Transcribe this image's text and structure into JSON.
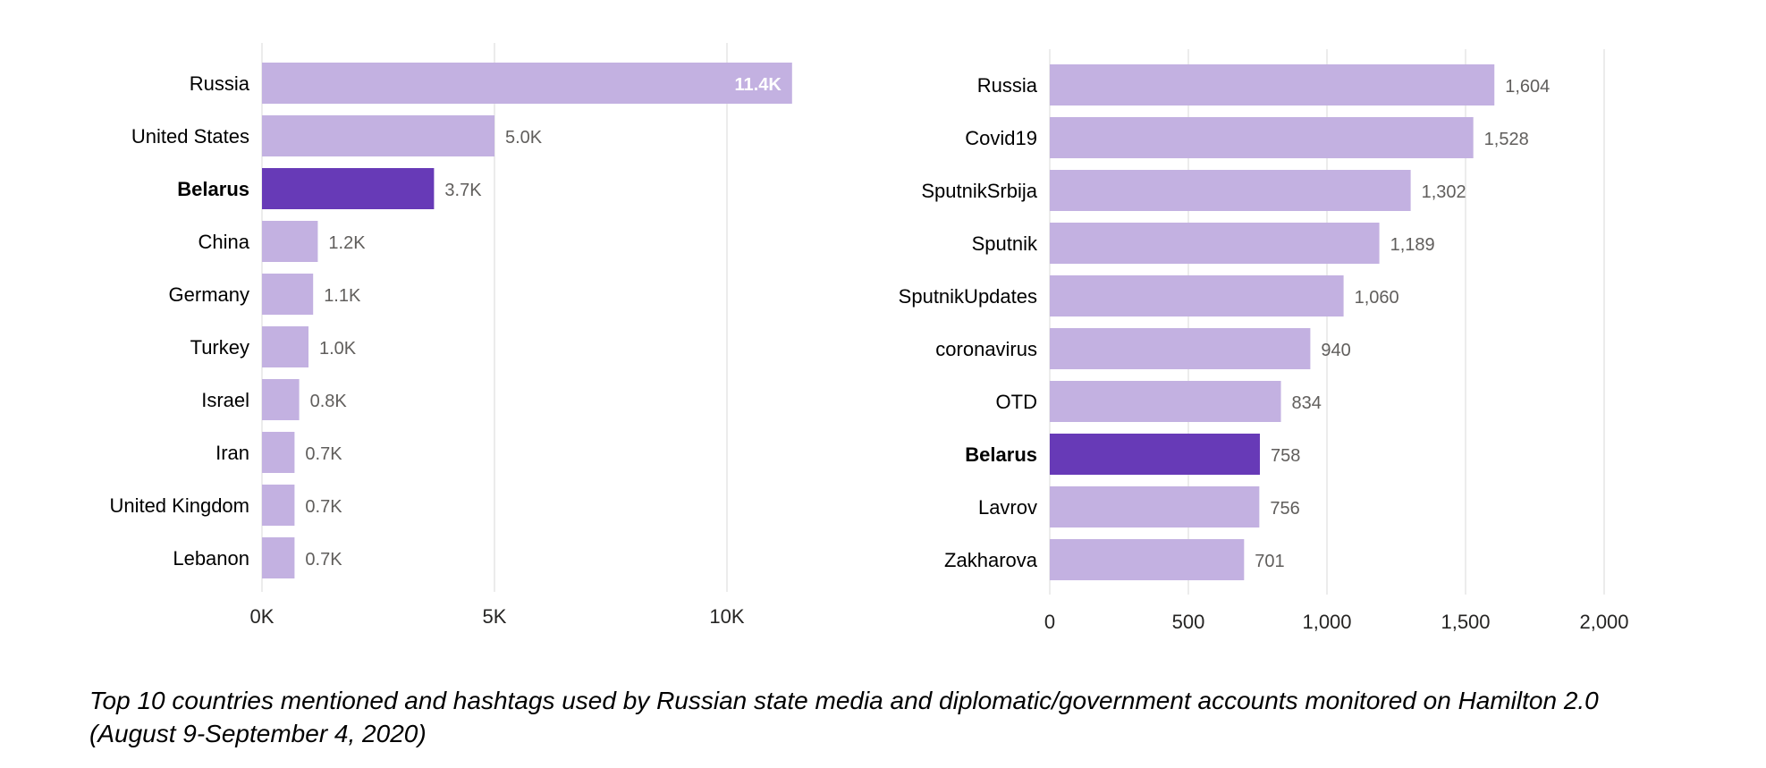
{
  "chart_data": [
    {
      "type": "bar",
      "orientation": "horizontal",
      "categories": [
        "Russia",
        "United States",
        "Belarus",
        "China",
        "Germany",
        "Turkey",
        "Israel",
        "Iran",
        "United Kingdom",
        "Lebanon"
      ],
      "values": [
        11400,
        5000,
        3700,
        1200,
        1100,
        1000,
        800,
        700,
        700,
        700
      ],
      "data_labels": [
        "11.4K",
        "5.0K",
        "3.7K",
        "1.2K",
        "1.1K",
        "1.0K",
        "0.8K",
        "0.7K",
        "0.7K",
        "0.7K"
      ],
      "highlight": "Belarus",
      "xlim": [
        0,
        12500
      ],
      "xticks": [
        0,
        5000,
        10000
      ],
      "xtick_labels": [
        "0K",
        "5K",
        "10K"
      ],
      "grid": true,
      "colors": {
        "bar": "#c3b1e1",
        "highlight": "#673ab7",
        "grid": "#e6e6e6",
        "label": "#252423",
        "value": "#605e5c"
      }
    },
    {
      "type": "bar",
      "orientation": "horizontal",
      "categories": [
        "Russia",
        "Covid19",
        "SputnikSrbija",
        "Sputnik",
        "SputnikUpdates",
        "coronavirus",
        "OTD",
        "Belarus",
        "Lavrov",
        "Zakharova"
      ],
      "values": [
        1604,
        1528,
        1302,
        1189,
        1060,
        940,
        834,
        758,
        756,
        701
      ],
      "data_labels": [
        "1,604",
        "1,528",
        "1,302",
        "1,189",
        "1,060",
        "940",
        "834",
        "758",
        "756",
        "701"
      ],
      "highlight": "Belarus",
      "xlim": [
        0,
        2000
      ],
      "xticks": [
        0,
        500,
        1000,
        1500,
        2000
      ],
      "xtick_labels": [
        "0",
        "500",
        "1,000",
        "1,500",
        "2,000"
      ],
      "grid": true,
      "colors": {
        "bar": "#c3b1e1",
        "highlight": "#673ab7",
        "grid": "#e6e6e6",
        "label": "#252423",
        "value": "#605e5c"
      }
    }
  ],
  "caption": {
    "line1": "Top 10 countries mentioned and hashtags used by Russian state media and diplomatic/government accounts monitored on Hamilton 2.0",
    "line2": "(August 9-September 4, 2020)"
  }
}
